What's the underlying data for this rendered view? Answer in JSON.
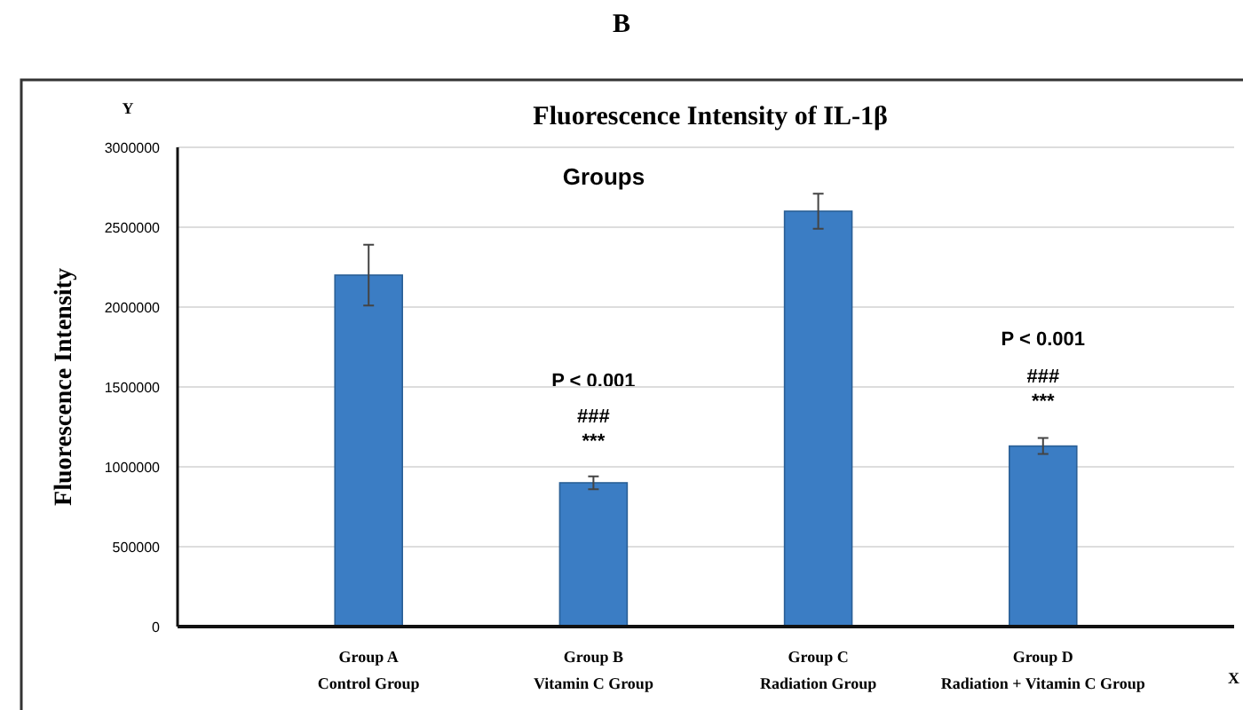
{
  "chart_data": {
    "type": "bar",
    "title": "Fluorescence Intensity of IL-1β",
    "subtitle": "Groups",
    "ylabel": "Fluorescence Intensity",
    "categories": [
      "Group A\nControl Group",
      "Group B\nVitamin C Group",
      "Group C\nRadiation Group",
      "Group D\nRadiation + Vitamin C Group"
    ],
    "values": [
      2200000,
      900000,
      2600000,
      1130000
    ],
    "errors": [
      190000,
      40000,
      110000,
      50000
    ],
    "color": "#3b7dc4",
    "ylim": [
      0,
      3000000
    ],
    "yticks": [
      0,
      500000,
      1000000,
      1500000,
      2000000,
      2500000,
      3000000
    ],
    "grid": "y",
    "annotations": [
      "B",
      "Y",
      "X",
      "P < 0.001",
      "###",
      "***",
      "P < 0.001",
      "###",
      "***"
    ]
  }
}
